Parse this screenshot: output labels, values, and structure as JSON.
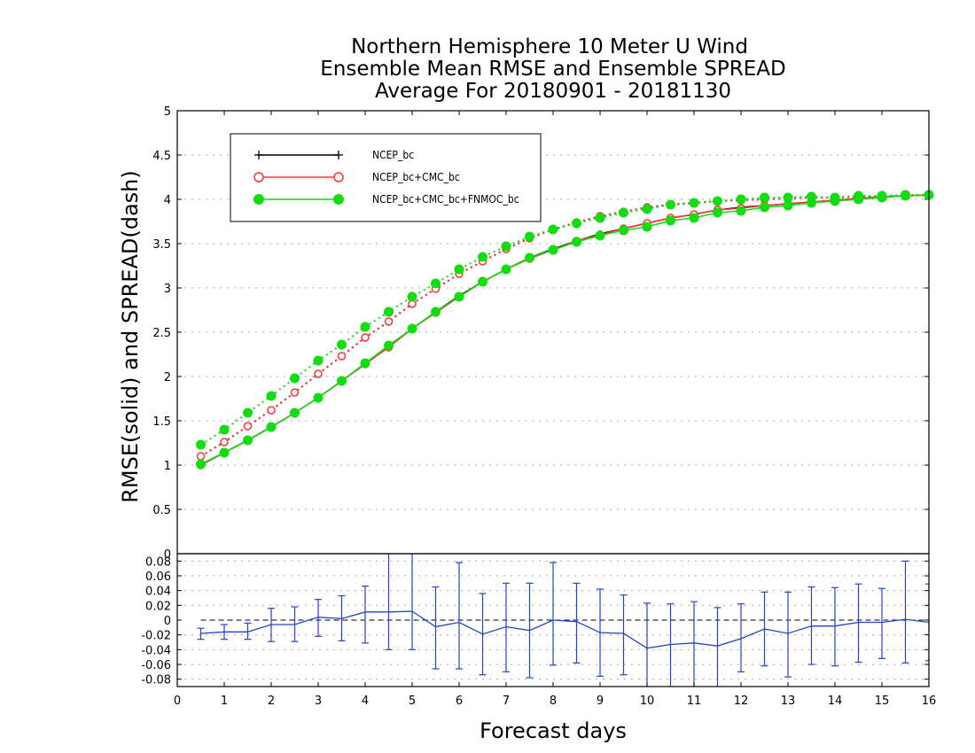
{
  "title_lines": [
    "Northern Hemisphere 10 Meter U Wind",
    "Ensemble Mean RMSE and Ensemble SPREAD",
    "Average For 20180901 - 20181130"
  ],
  "chart_data": [
    {
      "type": "line",
      "ylabel": "RMSE(solid) and SPREAD(dash)",
      "xlabel": "",
      "xlim": [
        0,
        16
      ],
      "ylim": [
        0,
        5
      ],
      "x_ticks": [
        "0",
        "1",
        "2",
        "3",
        "4",
        "5",
        "6",
        "7",
        "8",
        "9",
        "10",
        "11",
        "12",
        "13",
        "14",
        "15",
        "16"
      ],
      "y_ticks": [
        "0",
        "0.5",
        "1",
        "1.5",
        "2",
        "2.5",
        "3",
        "3.5",
        "4",
        "4.5",
        "5"
      ],
      "grid": true,
      "legend_position": "top-left",
      "x": [
        0.5,
        1,
        1.5,
        2,
        2.5,
        3,
        3.5,
        4,
        4.5,
        5,
        5.5,
        6,
        6.5,
        7,
        7.5,
        8,
        8.5,
        9,
        9.5,
        10,
        10.5,
        11,
        11.5,
        12,
        12.5,
        13,
        13.5,
        14,
        14.5,
        15,
        15.5,
        16
      ],
      "series": [
        {
          "name": "NCEP_bc",
          "color": "#000000",
          "marker": "plus",
          "rmse": [
            1.0,
            1.14,
            1.28,
            1.43,
            1.59,
            1.76,
            1.95,
            2.14,
            2.34,
            2.54,
            2.73,
            2.91,
            3.07,
            3.21,
            3.34,
            3.44,
            3.53,
            3.61,
            3.67,
            3.73,
            3.79,
            3.83,
            3.88,
            3.91,
            3.93,
            3.95,
            3.97,
            3.99,
            4.01,
            4.03,
            4.04,
            4.05
          ],
          "spread": [
            1.1,
            1.26,
            1.44,
            1.62,
            1.82,
            2.03,
            2.23,
            2.44,
            2.62,
            2.82,
            2.99,
            3.16,
            3.3,
            3.44,
            3.56,
            3.66,
            3.74,
            3.81,
            3.86,
            3.91,
            3.94,
            3.96,
            3.98,
            3.99,
            4.0,
            4.01,
            4.02,
            4.02,
            4.03,
            4.03,
            4.04,
            4.05
          ]
        },
        {
          "name": "NCEP_bc+CMC_bc",
          "color": "#ff3333",
          "marker": "open-circle",
          "rmse": [
            1.0,
            1.14,
            1.28,
            1.43,
            1.59,
            1.76,
            1.95,
            2.14,
            2.33,
            2.54,
            2.72,
            2.9,
            3.07,
            3.21,
            3.33,
            3.43,
            3.53,
            3.6,
            3.67,
            3.73,
            3.79,
            3.83,
            3.88,
            3.9,
            3.93,
            3.95,
            3.97,
            3.99,
            4.01,
            4.03,
            4.04,
            4.05
          ],
          "spread": [
            1.1,
            1.26,
            1.44,
            1.62,
            1.82,
            2.03,
            2.23,
            2.44,
            2.62,
            2.82,
            2.99,
            3.16,
            3.3,
            3.44,
            3.56,
            3.66,
            3.74,
            3.81,
            3.86,
            3.91,
            3.94,
            3.96,
            3.98,
            3.99,
            4.0,
            4.01,
            4.02,
            4.02,
            4.03,
            4.03,
            4.04,
            4.05
          ]
        },
        {
          "name": "NCEP_bc+CMC_bc+FNMOC_bc",
          "color": "#11dd11",
          "marker": "filled-circle",
          "rmse": [
            1.01,
            1.14,
            1.28,
            1.43,
            1.59,
            1.76,
            1.95,
            2.15,
            2.35,
            2.54,
            2.73,
            2.9,
            3.07,
            3.21,
            3.34,
            3.43,
            3.52,
            3.59,
            3.65,
            3.69,
            3.76,
            3.79,
            3.85,
            3.87,
            3.91,
            3.93,
            3.96,
            3.98,
            4.0,
            4.02,
            4.04,
            4.05
          ],
          "spread": [
            1.23,
            1.4,
            1.59,
            1.78,
            1.98,
            2.18,
            2.36,
            2.56,
            2.73,
            2.9,
            3.05,
            3.21,
            3.35,
            3.47,
            3.58,
            3.66,
            3.73,
            3.79,
            3.85,
            3.89,
            3.94,
            3.96,
            3.98,
            4.0,
            4.02,
            4.02,
            4.03,
            4.02,
            4.04,
            4.04,
            4.05,
            4.05
          ]
        }
      ]
    },
    {
      "type": "line",
      "xlabel": "Forecast days",
      "ylabel": "",
      "xlim": [
        0,
        16
      ],
      "ylim": [
        -0.09,
        0.09
      ],
      "x_ticks": [
        "0",
        "1",
        "2",
        "3",
        "4",
        "5",
        "6",
        "7",
        "8",
        "9",
        "10",
        "11",
        "12",
        "13",
        "14",
        "15",
        "16"
      ],
      "y_ticks": [
        "-0.08",
        "-0.06",
        "-0.04",
        "-0.02",
        "0",
        "0.02",
        "0.04",
        "0.06",
        "0.08"
      ],
      "grid": true,
      "zero_line": true,
      "series": [
        {
          "color": "#2244cc",
          "x": [
            0.5,
            1,
            1.5,
            2,
            2.5,
            3,
            3.5,
            4,
            4.5,
            5,
            5.5,
            6,
            6.5,
            7,
            7.5,
            8,
            8.5,
            9,
            9.5,
            10,
            10.5,
            11,
            11.5,
            12,
            12.5,
            13,
            13.5,
            14,
            14.5,
            15,
            15.5,
            16
          ],
          "values": [
            -0.018,
            -0.016,
            -0.016,
            -0.006,
            -0.006,
            0.004,
            0.002,
            0.011,
            0.011,
            0.012,
            -0.009,
            -0.003,
            -0.019,
            -0.009,
            -0.014,
            0.0,
            -0.002,
            -0.017,
            -0.018,
            -0.038,
            -0.033,
            -0.031,
            -0.035,
            -0.025,
            -0.012,
            -0.018,
            -0.008,
            -0.008,
            -0.003,
            -0.003,
            0.001,
            -0.003
          ],
          "error_low": [
            -0.026,
            -0.026,
            -0.026,
            -0.029,
            -0.029,
            -0.022,
            -0.028,
            -0.031,
            -0.04,
            -0.04,
            -0.066,
            -0.066,
            -0.074,
            -0.07,
            -0.078,
            -0.061,
            -0.058,
            -0.076,
            -0.074,
            -0.097,
            -0.092,
            -0.091,
            -0.092,
            -0.07,
            -0.062,
            -0.077,
            -0.06,
            -0.062,
            -0.057,
            -0.052,
            -0.058,
            -0.055
          ],
          "error_high": [
            -0.011,
            -0.006,
            -0.004,
            0.016,
            0.018,
            0.028,
            0.033,
            0.046,
            0.09,
            0.09,
            0.045,
            0.078,
            0.036,
            0.05,
            0.05,
            0.078,
            0.05,
            0.042,
            0.034,
            0.023,
            0.022,
            0.025,
            0.017,
            0.022,
            0.038,
            0.038,
            0.045,
            0.044,
            0.049,
            0.043,
            0.08,
            0.049
          ]
        }
      ]
    }
  ]
}
